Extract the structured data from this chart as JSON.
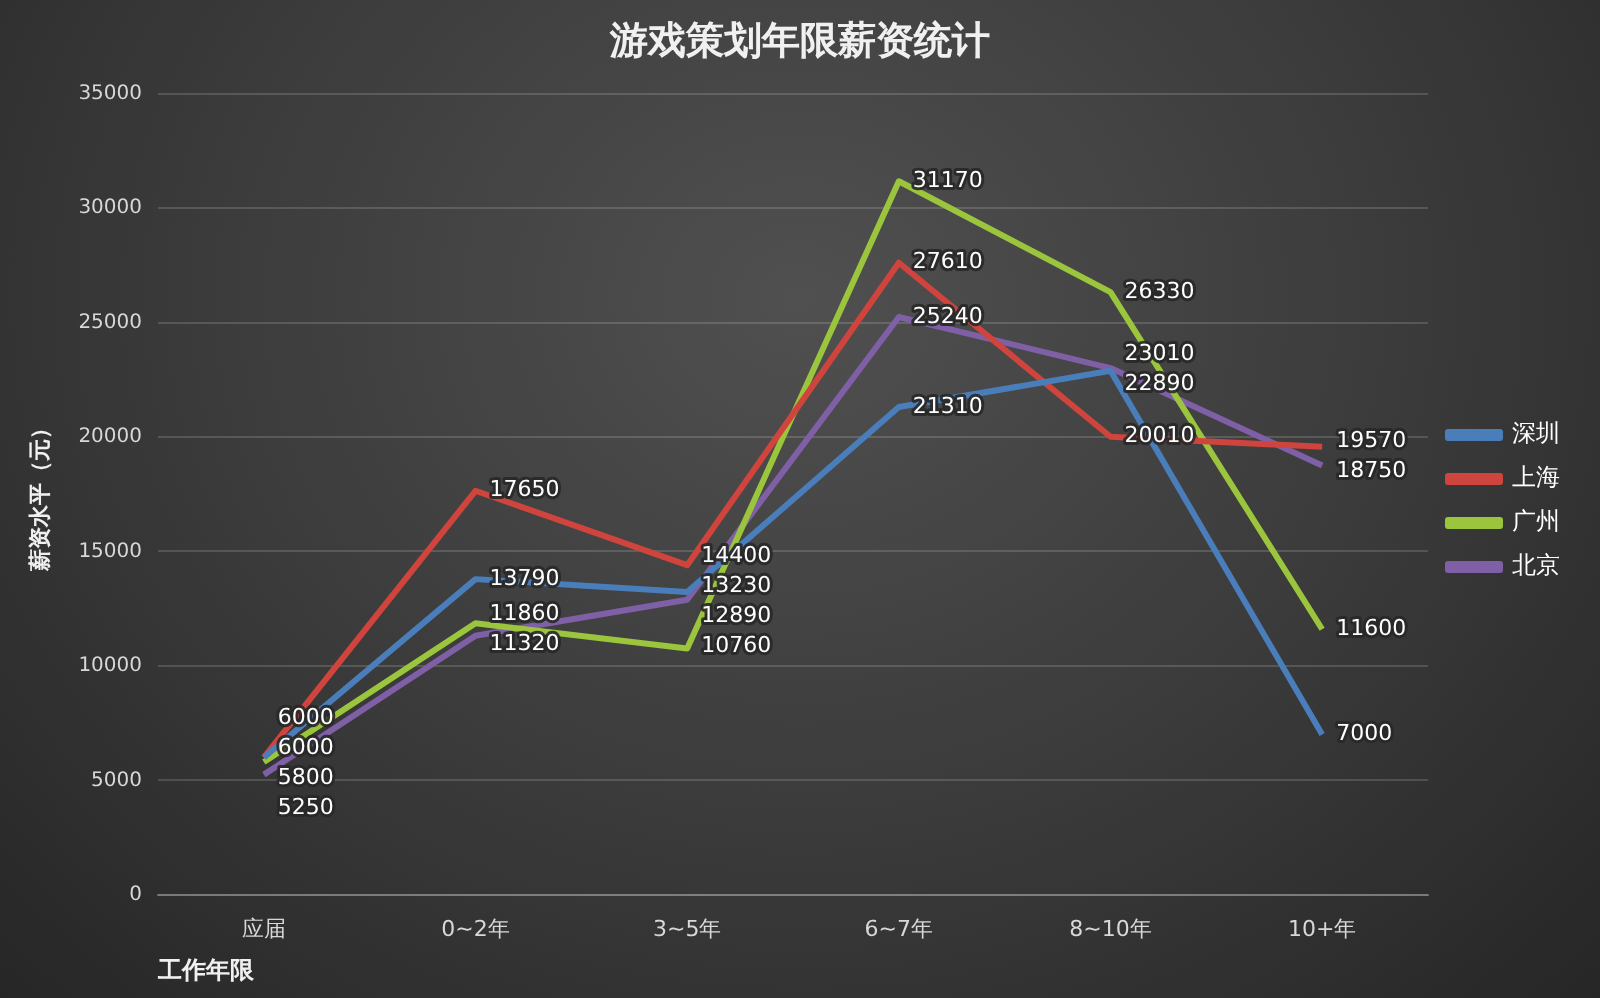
{
  "chart_data": {
    "type": "line",
    "title": "游戏策划年限薪资统计",
    "xlabel": "工作年限",
    "ylabel": "薪资水平（元）",
    "categories": [
      "应届",
      "0~2年",
      "3~5年",
      "6~7年",
      "8~10年",
      "10+年"
    ],
    "series": [
      {
        "name": "深圳",
        "color": "#4a7ebb",
        "values": [
          6000,
          13790,
          13230,
          21310,
          22890,
          7000
        ]
      },
      {
        "name": "上海",
        "color": "#d0443e",
        "values": [
          6000,
          17650,
          14400,
          27610,
          20010,
          19570
        ]
      },
      {
        "name": "广州",
        "color": "#9bc53d",
        "values": [
          5800,
          11860,
          10760,
          31170,
          26330,
          11600
        ]
      },
      {
        "name": "北京",
        "color": "#7f5fa5",
        "values": [
          5250,
          11320,
          12890,
          25240,
          23010,
          18750
        ]
      }
    ],
    "ylim": [
      0,
      35000
    ],
    "yticks": [
      0,
      5000,
      10000,
      15000,
      20000,
      25000,
      30000,
      35000
    ],
    "grid": "y",
    "legend": "right",
    "marker": "none",
    "line_style": "solid",
    "data_labels": true
  }
}
